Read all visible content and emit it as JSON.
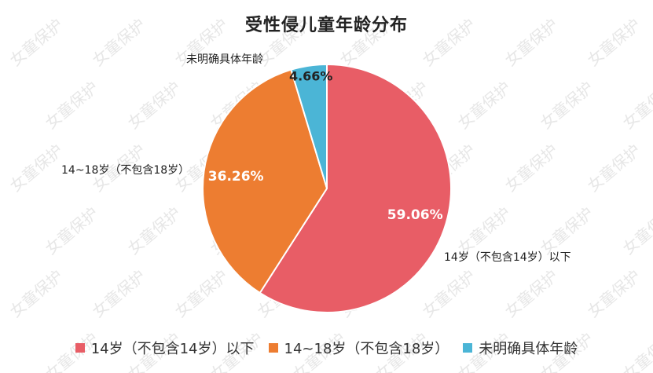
{
  "watermark": "女童保护",
  "chart_data": {
    "type": "pie",
    "title": "受性侵儿童年龄分布",
    "slices": [
      {
        "label": "14岁（不包含14岁）以下",
        "value": 59.06,
        "value_label": "59.06%",
        "color": "#E85D66"
      },
      {
        "label": "14~18岁（不包含18岁）",
        "value": 36.26,
        "value_label": "36.26%",
        "color": "#ED7D31"
      },
      {
        "label": "未明确具体年龄",
        "value": 4.66,
        "value_label": "4.66%",
        "color": "#4BB5D6"
      }
    ],
    "legend_position": "bottom"
  }
}
